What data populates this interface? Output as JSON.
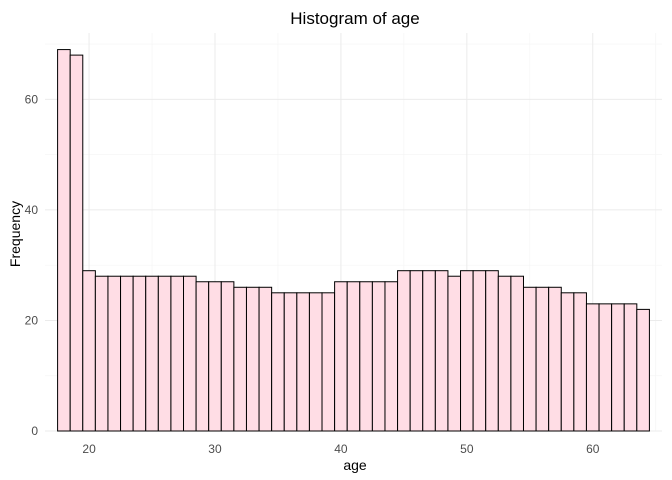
{
  "chart_data": {
    "type": "bar",
    "title": "Histogram of age",
    "xlabel": "age",
    "ylabel": "Frequency",
    "x_bin_width": 1,
    "x_bin_centers": [
      18,
      19,
      20,
      21,
      22,
      23,
      24,
      25,
      26,
      27,
      28,
      29,
      30,
      31,
      32,
      33,
      34,
      35,
      36,
      37,
      38,
      39,
      40,
      41,
      42,
      43,
      44,
      45,
      46,
      47,
      48,
      49,
      50,
      51,
      52,
      53,
      54,
      55,
      56,
      57,
      58,
      59,
      60,
      61,
      62,
      63,
      64
    ],
    "values": [
      69,
      68,
      29,
      28,
      28,
      28,
      28,
      28,
      28,
      28,
      28,
      27,
      27,
      27,
      26,
      26,
      26,
      25,
      25,
      25,
      25,
      25,
      27,
      27,
      27,
      27,
      27,
      29,
      29,
      29,
      29,
      28,
      29,
      29,
      29,
      28,
      28,
      26,
      26,
      26,
      25,
      25,
      23,
      23,
      23,
      23,
      22
    ],
    "xlim": [
      16.5,
      65.5
    ],
    "ylim": [
      0,
      72
    ],
    "x_ticks": [
      20,
      30,
      40,
      50,
      60
    ],
    "x_tick_labels": [
      "20",
      "30",
      "40",
      "50",
      "60"
    ],
    "y_ticks": [
      0,
      20,
      40,
      60
    ],
    "y_tick_labels": [
      "0",
      "20",
      "40",
      "60"
    ],
    "grid": true,
    "legend": "none",
    "bar_fill": "#ffdde5",
    "bar_stroke": "#000000"
  }
}
